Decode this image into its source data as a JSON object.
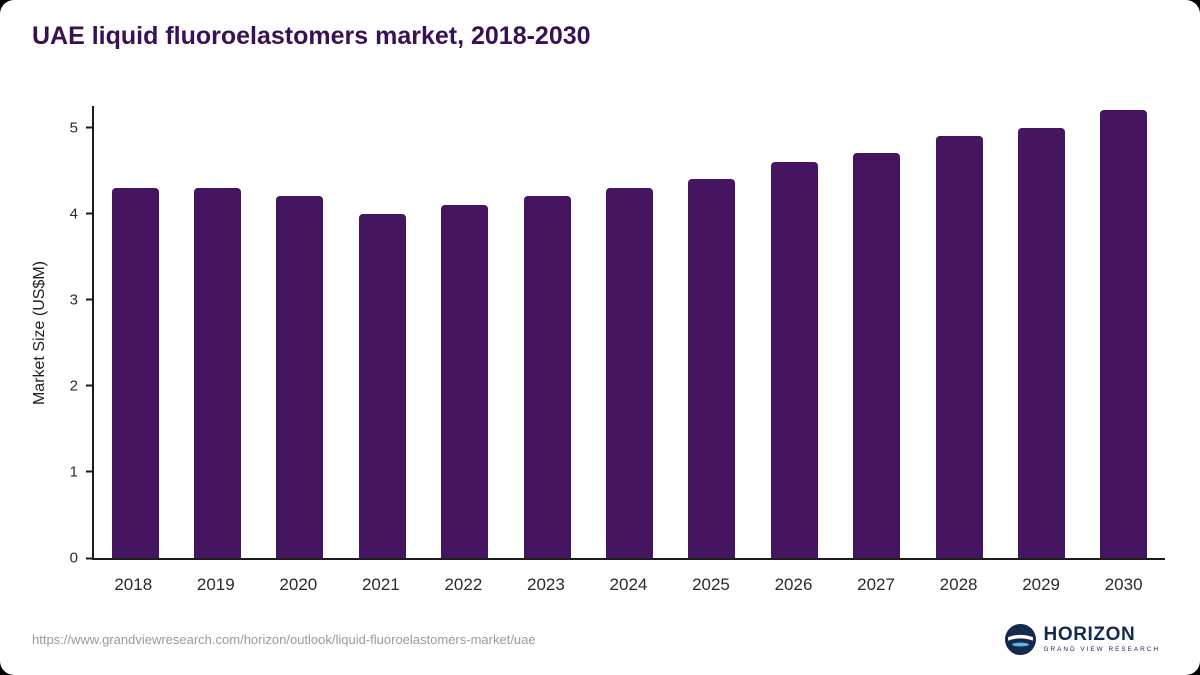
{
  "title": "UAE liquid fluoroelastomers market, 2018-2030",
  "footer": {
    "source_url": "https://www.grandviewresearch.com/horizon/outlook/liquid-fluoroelastomers-market/uae",
    "brand_name": "HORIZON",
    "brand_subtitle": "GRAND VIEW RESEARCH"
  },
  "colors": {
    "bar": "#451560",
    "title": "#3a1054",
    "axis": "#1c1c1c",
    "brand_navy": "#152a4e",
    "brand_light_blue": "#5ab9e9"
  },
  "chart_data": {
    "type": "bar",
    "title": "UAE liquid fluoroelastomers market, 2018-2030",
    "xlabel": "",
    "ylabel": "Market Size (US$M)",
    "ylim": [
      0,
      5
    ],
    "ymax_display": 5.25,
    "yticks": [
      0,
      1,
      2,
      3,
      4,
      5
    ],
    "grid": false,
    "legend": false,
    "categories": [
      "2018",
      "2019",
      "2020",
      "2021",
      "2022",
      "2023",
      "2024",
      "2025",
      "2026",
      "2027",
      "2028",
      "2029",
      "2030"
    ],
    "values": [
      4.3,
      4.3,
      4.2,
      4.0,
      4.1,
      4.2,
      4.3,
      4.4,
      4.6,
      4.7,
      4.9,
      5.0,
      5.2
    ]
  }
}
